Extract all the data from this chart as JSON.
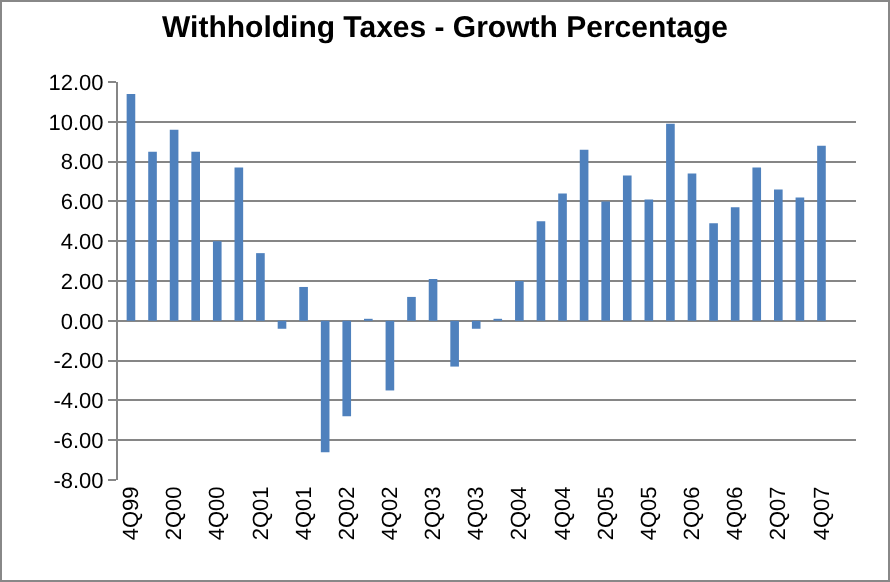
{
  "chart_data": {
    "type": "bar",
    "title": "Withholding Taxes - Growth Percentage",
    "categories": [
      "4Q99",
      null,
      "2Q00",
      null,
      "4Q00",
      null,
      "2Q01",
      null,
      "4Q01",
      null,
      "2Q02",
      null,
      "4Q02",
      null,
      "2Q03",
      null,
      "4Q03",
      null,
      "2Q04",
      null,
      "4Q04",
      null,
      "2Q05",
      null,
      "4Q05",
      null,
      "2Q06",
      null,
      "4Q06",
      null,
      "2Q07",
      null,
      "4Q07",
      null
    ],
    "values": [
      11.4,
      8.5,
      9.6,
      8.5,
      4.0,
      7.7,
      3.4,
      -0.4,
      1.7,
      -6.6,
      -4.8,
      0.1,
      -3.5,
      1.2,
      2.1,
      -2.3,
      -0.4,
      0.1,
      2.0,
      5.0,
      6.4,
      8.6,
      6.0,
      7.3,
      6.1,
      9.9,
      7.4,
      4.9,
      5.7,
      7.7,
      6.6,
      6.2,
      8.8,
      null
    ],
    "color": "#4f81bd",
    "ylim": [
      -8,
      12
    ],
    "yticks": [
      {
        "value": -8,
        "label": "-8.00"
      },
      {
        "value": -6,
        "label": "-6.00"
      },
      {
        "value": -4,
        "label": "-4.00"
      },
      {
        "value": -2,
        "label": "-2.00"
      },
      {
        "value": 0,
        "label": "0.00"
      },
      {
        "value": 2,
        "label": "2.00"
      },
      {
        "value": 4,
        "label": "4.00"
      },
      {
        "value": 6,
        "label": "6.00"
      },
      {
        "value": 8,
        "label": "8.00"
      },
      {
        "value": 10,
        "label": "10.00"
      },
      {
        "value": 12,
        "label": "12.00"
      }
    ],
    "grid": "y"
  }
}
